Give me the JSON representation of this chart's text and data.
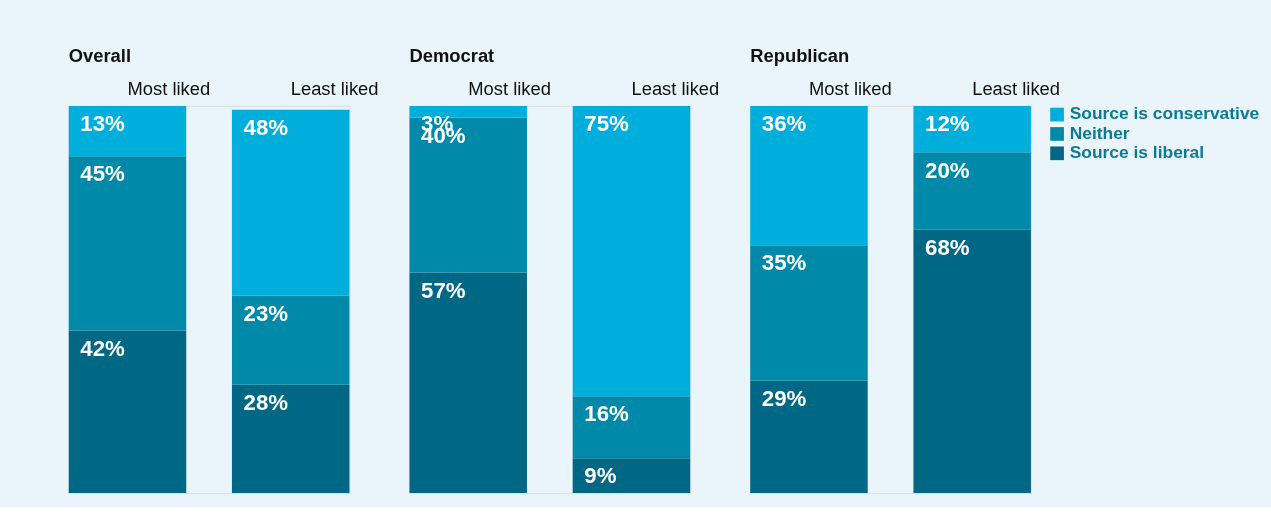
{
  "chart_data": [
    {
      "type": "bar",
      "title": "Overall",
      "categories": [
        "Most liked",
        "Least liked"
      ],
      "stacked": true,
      "series": [
        {
          "color": "#006885",
          "values": [
            42,
            28
          ],
          "value_labels": [
            "42%",
            "28%"
          ]
        },
        {
          "color": "#0089a8",
          "values": [
            45,
            23
          ],
          "value_labels": [
            "45%",
            "23%"
          ]
        },
        {
          "color": "#00aedb",
          "values": [
            13,
            48
          ],
          "value_labels": [
            "13%",
            "48%"
          ]
        }
      ]
    },
    {
      "type": "bar",
      "title": "Democrat",
      "categories": [
        "Most liked",
        "Least liked"
      ],
      "stacked": true,
      "series": [
        {
          "color": "#006885",
          "values": [
            57,
            9
          ],
          "value_labels": [
            "57%",
            "9%"
          ]
        },
        {
          "color": "#0089a8",
          "values": [
            40,
            16
          ],
          "value_labels": [
            "40%",
            "16%"
          ]
        },
        {
          "color": "#00aedb",
          "values": [
            3,
            75
          ],
          "value_labels": [
            "3%",
            "75%"
          ]
        }
      ]
    },
    {
      "type": "bar",
      "title": "Republican",
      "categories": [
        "Most liked",
        "Least liked"
      ],
      "stacked": true,
      "legend": "right",
      "series": [
        {
          "name": "Source is liberal",
          "color": "#006885",
          "values": [
            29,
            68
          ],
          "value_labels": [
            "29%",
            "68%"
          ]
        },
        {
          "name": "Neither",
          "color": "#0089a8",
          "values": [
            35,
            20
          ],
          "value_labels": [
            "35%",
            "20%"
          ]
        },
        {
          "name": "Source is conservative",
          "color": "#00aedb",
          "values": [
            36,
            12
          ],
          "value_labels": [
            "36%",
            "12%"
          ]
        }
      ]
    }
  ]
}
